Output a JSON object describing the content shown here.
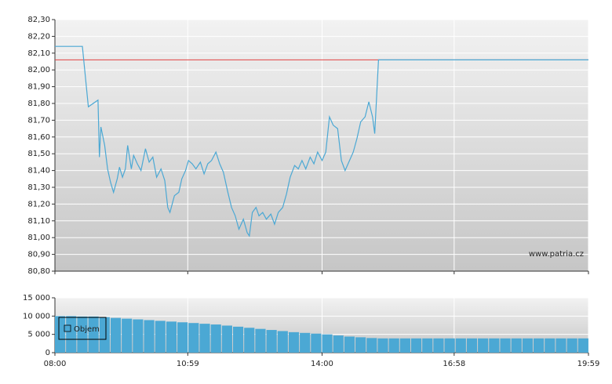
{
  "chart_data": [
    {
      "type": "line",
      "x": [
        "08:00",
        "08:37",
        "08:45",
        "08:58",
        "09:00",
        "09:02",
        "09:07",
        "09:11",
        "09:15",
        "09:19",
        "09:24",
        "09:27",
        "09:31",
        "09:35",
        "09:38",
        "09:43",
        "09:46",
        "09:51",
        "09:56",
        "10:02",
        "10:07",
        "10:12",
        "10:17",
        "10:23",
        "10:28",
        "10:32",
        "10:35",
        "10:41",
        "10:47",
        "10:51",
        "10:56",
        "11:00",
        "11:05",
        "11:10",
        "11:16",
        "11:21",
        "11:26",
        "11:31",
        "11:37",
        "11:42",
        "11:47",
        "11:53",
        "11:58",
        "12:03",
        "12:08",
        "12:14",
        "12:19",
        "12:22",
        "12:26",
        "12:31",
        "12:35",
        "12:40",
        "12:45",
        "12:51",
        "12:56",
        "13:01",
        "13:07",
        "13:12",
        "13:17",
        "13:23",
        "13:28",
        "13:33",
        "13:38",
        "13:44",
        "13:49",
        "13:54",
        "14:00",
        "14:05",
        "14:10",
        "14:15",
        "14:21",
        "14:26",
        "14:31",
        "14:37",
        "14:42",
        "14:47",
        "14:52",
        "14:58",
        "15:03",
        "15:08",
        "15:11",
        "15:16",
        "19:59"
      ],
      "values": [
        82.14,
        82.14,
        81.78,
        81.82,
        81.48,
        81.66,
        81.55,
        81.41,
        81.33,
        81.27,
        81.35,
        81.42,
        81.36,
        81.41,
        81.55,
        81.41,
        81.49,
        81.44,
        81.4,
        81.53,
        81.45,
        81.48,
        81.36,
        81.41,
        81.34,
        81.18,
        81.15,
        81.25,
        81.27,
        81.35,
        81.4,
        81.46,
        81.44,
        81.41,
        81.45,
        81.38,
        81.44,
        81.46,
        81.51,
        81.44,
        81.39,
        81.27,
        81.18,
        81.13,
        81.05,
        81.11,
        81.03,
        81.01,
        81.15,
        81.18,
        81.13,
        81.15,
        81.11,
        81.14,
        81.08,
        81.15,
        81.18,
        81.26,
        81.36,
        81.43,
        81.41,
        81.46,
        81.41,
        81.48,
        81.44,
        81.51,
        81.46,
        81.51,
        81.72,
        81.67,
        81.65,
        81.46,
        81.4,
        81.46,
        81.51,
        81.59,
        81.69,
        81.72,
        81.81,
        81.72,
        81.62,
        82.06,
        82.06
      ],
      "color": "#4ba8d4",
      "reference_line": {
        "value": 82.06,
        "color": "#e04040"
      },
      "xlim": [
        "08:00",
        "19:59"
      ],
      "ylim": [
        80.8,
        82.3
      ],
      "yticks": [
        {
          "value": 80.8,
          "label": "80,80"
        },
        {
          "value": 80.9,
          "label": "80,90"
        },
        {
          "value": 81.0,
          "label": "81,00"
        },
        {
          "value": 81.1,
          "label": "81,10"
        },
        {
          "value": 81.2,
          "label": "81,20"
        },
        {
          "value": 81.3,
          "label": "81,30"
        },
        {
          "value": 81.4,
          "label": "81,40"
        },
        {
          "value": 81.5,
          "label": "81,50"
        },
        {
          "value": 81.6,
          "label": "81,60"
        },
        {
          "value": 81.7,
          "label": "81,70"
        },
        {
          "value": 81.8,
          "label": "81,80"
        },
        {
          "value": 81.9,
          "label": "81,90"
        },
        {
          "value": 82.0,
          "label": "82,00"
        },
        {
          "value": 82.1,
          "label": "82,10"
        },
        {
          "value": 82.2,
          "label": "82,20"
        },
        {
          "value": 82.3,
          "label": "82,30"
        }
      ],
      "grid": true,
      "watermark": "www.patria.cz"
    },
    {
      "type": "bar",
      "x": [
        "08:00",
        "08:15",
        "08:30",
        "08:45",
        "09:00",
        "09:15",
        "09:30",
        "09:45",
        "10:00",
        "10:15",
        "10:30",
        "10:45",
        "11:00",
        "11:15",
        "11:30",
        "11:45",
        "12:00",
        "12:15",
        "12:30",
        "12:45",
        "13:00",
        "13:15",
        "13:30",
        "13:45",
        "14:00",
        "14:15",
        "14:30",
        "14:45",
        "15:00",
        "15:15",
        "15:30",
        "15:45",
        "16:00",
        "16:15",
        "16:30",
        "16:45",
        "17:00",
        "17:15",
        "17:30",
        "17:45",
        "18:00",
        "18:15",
        "18:30",
        "18:45",
        "19:00",
        "19:15",
        "19:30",
        "19:45"
      ],
      "series": [
        {
          "name": "Objem",
          "color": "#4ba8d4",
          "values": [
            10000,
            10000,
            9900,
            9900,
            9700,
            9500,
            9300,
            9100,
            8900,
            8700,
            8500,
            8300,
            8100,
            7900,
            7700,
            7400,
            7100,
            6800,
            6500,
            6200,
            5900,
            5600,
            5400,
            5200,
            5000,
            4700,
            4400,
            4200,
            4000,
            3900,
            3900,
            3900,
            3900,
            3900,
            3900,
            3900,
            3900,
            3900,
            3900,
            3900,
            3900,
            3900,
            3900,
            3900,
            3900,
            3900,
            3900,
            3900
          ]
        }
      ],
      "xlim": [
        "08:00",
        "19:59"
      ],
      "xticks": [
        "08:00",
        "10:59",
        "14:00",
        "16:58",
        "19:59"
      ],
      "ylim": [
        0,
        15000
      ],
      "yticks": [
        0,
        {
          "value": 5000,
          "label": "5 000"
        },
        {
          "value": 10000,
          "label": "10 000"
        },
        {
          "value": 15000,
          "label": "15 000"
        }
      ],
      "grid": true,
      "legend": "top-left"
    }
  ]
}
